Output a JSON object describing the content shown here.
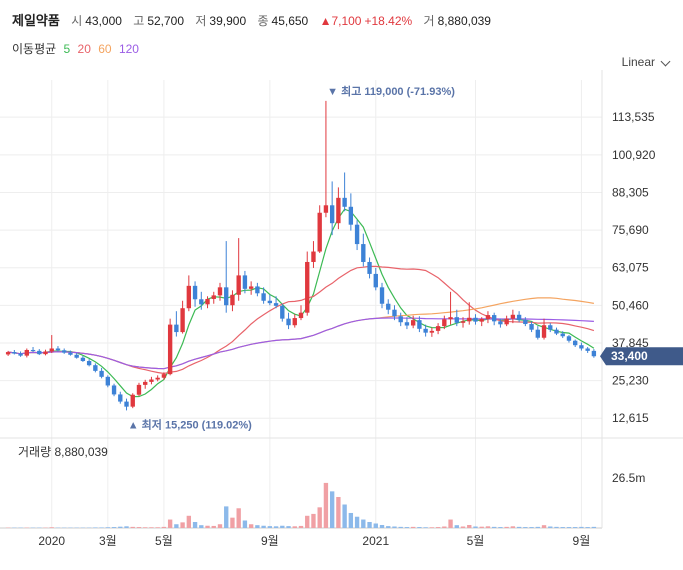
{
  "header": {
    "name": "제일약품",
    "open_label": "시",
    "open": "43,000",
    "high_label": "고",
    "high": "52,700",
    "low_label": "저",
    "low": "39,900",
    "close_label": "종",
    "close": "45,650",
    "change_arrow": "▲",
    "change": "7,100",
    "change_pct": "+18.42%",
    "volume_label": "거",
    "volume": "8,880,039"
  },
  "ma_legend": {
    "label": "이동평균",
    "items": [
      "5",
      "20",
      "60",
      "120"
    ],
    "colors": [
      "#3cba54",
      "#e8636a",
      "#f4a460",
      "#9b5de5"
    ]
  },
  "scale_selector": "Linear",
  "colors": {
    "up": "#e0383e",
    "down": "#3d82d6",
    "up_bar": "#f0a0a4",
    "down_bar": "#8cb9ea",
    "current_badge": "#3f5a8a",
    "marker": "#5a74a8",
    "grid": "#eeeeee"
  },
  "chart_data": {
    "type": "candlestick",
    "x_ticks": [
      {
        "label": "2020",
        "i": 7
      },
      {
        "label": "3월",
        "i": 16
      },
      {
        "label": "5월",
        "i": 25
      },
      {
        "label": "9월",
        "i": 42
      },
      {
        "label": "2021",
        "i": 59
      },
      {
        "label": "5월",
        "i": 75
      },
      {
        "label": "9월",
        "i": 92
      }
    ],
    "y_ticks": [
      "113,535",
      "100,920",
      "88,305",
      "75,690",
      "63,075",
      "50,460",
      "37,845",
      "25,230",
      "12,615"
    ],
    "y_tick_values": [
      113535,
      100920,
      88305,
      75690,
      63075,
      50460,
      37845,
      25230,
      12615
    ],
    "ylim": [
      7000,
      126000
    ],
    "current_price": "33,400",
    "current_value": 33400,
    "high_marker": {
      "label": "최고 119,000 (-71.93%)",
      "value": 119000,
      "i": 52
    },
    "low_marker": {
      "label": "최저 15,250 (119.02%)",
      "value": 15250,
      "i": 20
    },
    "volume_label": "거래량",
    "volume_value": "8,880,039",
    "volume_tick": "26.5m",
    "volume_tick_value": 26500000,
    "candles": [
      [
        34000,
        35200,
        33500,
        34800
      ],
      [
        34800,
        35500,
        34000,
        34300
      ],
      [
        34300,
        35000,
        33200,
        33600
      ],
      [
        33600,
        36000,
        33000,
        35500
      ],
      [
        35500,
        36500,
        34800,
        35200
      ],
      [
        35200,
        35800,
        33800,
        34100
      ],
      [
        34100,
        35600,
        33700,
        35000
      ],
      [
        35000,
        40500,
        34500,
        36000
      ],
      [
        36000,
        36800,
        35000,
        35400
      ],
      [
        35400,
        36000,
        34200,
        34600
      ],
      [
        34600,
        35300,
        33600,
        33900
      ],
      [
        33900,
        34500,
        32600,
        32900
      ],
      [
        32900,
        33500,
        31500,
        31800
      ],
      [
        31800,
        32400,
        30000,
        30400
      ],
      [
        30400,
        31000,
        28000,
        28500
      ],
      [
        28500,
        29500,
        26000,
        26500
      ],
      [
        26500,
        27000,
        23000,
        23600
      ],
      [
        23600,
        24200,
        20000,
        20600
      ],
      [
        20600,
        21500,
        17500,
        18200
      ],
      [
        18200,
        19200,
        15250,
        16500
      ],
      [
        16500,
        21000,
        16000,
        20500
      ],
      [
        20500,
        24500,
        20000,
        23800
      ],
      [
        23800,
        25500,
        22500,
        24800
      ],
      [
        24800,
        26500,
        24000,
        25600
      ],
      [
        25600,
        27000,
        25000,
        26200
      ],
      [
        26200,
        28000,
        25500,
        27400
      ],
      [
        27400,
        46000,
        27000,
        44000
      ],
      [
        44000,
        48500,
        40000,
        41500
      ],
      [
        41500,
        52000,
        41000,
        49500
      ],
      [
        49500,
        60500,
        48500,
        57000
      ],
      [
        57000,
        58500,
        50000,
        52500
      ],
      [
        52500,
        55000,
        49000,
        50800
      ],
      [
        50800,
        53500,
        49500,
        52600
      ],
      [
        52600,
        55000,
        51000,
        53800
      ],
      [
        53800,
        58000,
        52000,
        56500
      ],
      [
        56500,
        72000,
        48000,
        50500
      ],
      [
        50500,
        55500,
        48500,
        54000
      ],
      [
        54000,
        73000,
        52000,
        60500
      ],
      [
        60500,
        62000,
        54500,
        56000
      ],
      [
        56000,
        58500,
        54000,
        56800
      ],
      [
        56800,
        58000,
        53500,
        54500
      ],
      [
        54500,
        56500,
        51000,
        52000
      ],
      [
        52000,
        54000,
        50500,
        51200
      ],
      [
        51200,
        53500,
        49500,
        50300
      ],
      [
        50300,
        51000,
        45000,
        46000
      ],
      [
        46000,
        48000,
        42500,
        43800
      ],
      [
        43800,
        47500,
        43000,
        46200
      ],
      [
        46200,
        50500,
        45500,
        48000
      ],
      [
        48000,
        68500,
        47000,
        65000
      ],
      [
        65000,
        72000,
        63000,
        68500
      ],
      [
        68500,
        84000,
        68000,
        81500
      ],
      [
        81500,
        119000,
        80000,
        84000
      ],
      [
        84000,
        92000,
        74000,
        78000
      ],
      [
        78000,
        90000,
        76000,
        86500
      ],
      [
        86500,
        95000,
        82000,
        83500
      ],
      [
        83500,
        88000,
        75500,
        77500
      ],
      [
        77500,
        79000,
        69000,
        71000
      ],
      [
        71000,
        74500,
        63500,
        65000
      ],
      [
        65000,
        66500,
        59500,
        61000
      ],
      [
        61000,
        63000,
        55500,
        56500
      ],
      [
        56500,
        58000,
        49500,
        51000
      ],
      [
        51000,
        52500,
        47500,
        49000
      ],
      [
        49000,
        50500,
        45500,
        46800
      ],
      [
        46800,
        48000,
        43500,
        44800
      ],
      [
        44800,
        46500,
        42500,
        43700
      ],
      [
        43700,
        47000,
        42800,
        45500
      ],
      [
        45500,
        46800,
        41500,
        42600
      ],
      [
        42600,
        44000,
        40000,
        41300
      ],
      [
        41300,
        43000,
        39900,
        41900
      ],
      [
        41900,
        44500,
        40800,
        43500
      ],
      [
        43500,
        47000,
        42500,
        45800
      ],
      [
        45800,
        55000,
        44000,
        46500
      ],
      [
        46500,
        49000,
        43500,
        44600
      ],
      [
        44600,
        46500,
        43000,
        45100
      ],
      [
        45100,
        51500,
        44000,
        46300
      ],
      [
        46300,
        47500,
        44000,
        45000
      ],
      [
        45000,
        46500,
        43500,
        45900
      ],
      [
        45900,
        48500,
        44500,
        47200
      ],
      [
        47200,
        48000,
        43800,
        45100
      ],
      [
        45100,
        46000,
        43000,
        44100
      ],
      [
        44100,
        47000,
        43500,
        46000
      ],
      [
        46000,
        49000,
        44500,
        47300
      ],
      [
        47300,
        48500,
        44800,
        45600
      ],
      [
        45600,
        46500,
        43500,
        44200
      ],
      [
        44200,
        45000,
        41500,
        42300
      ],
      [
        42300,
        43500,
        39000,
        39600
      ],
      [
        39600,
        46000,
        39000,
        43800
      ],
      [
        43800,
        44500,
        41500,
        42300
      ],
      [
        42300,
        43000,
        40500,
        41000
      ],
      [
        41000,
        41800,
        39500,
        40100
      ],
      [
        40100,
        40500,
        38000,
        38600
      ],
      [
        38600,
        39000,
        36500,
        37100
      ],
      [
        37100,
        38000,
        35300,
        36000
      ],
      [
        36000,
        36500,
        34500,
        35200
      ],
      [
        35200,
        35800,
        32900,
        33400
      ]
    ],
    "volumes": [
      0.2,
      0.2,
      0.2,
      0.2,
      0.2,
      0.2,
      0.2,
      0.4,
      0.2,
      0.2,
      0.2,
      0.2,
      0.2,
      0.2,
      0.3,
      0.3,
      0.4,
      0.5,
      0.7,
      0.9,
      0.6,
      0.5,
      0.4,
      0.4,
      0.4,
      0.6,
      4.5,
      2.0,
      3.0,
      6.5,
      3.2,
      1.5,
      1.2,
      1.1,
      2.0,
      11.5,
      5.5,
      10.5,
      4.0,
      2.0,
      1.5,
      1.2,
      1.0,
      0.9,
      1.2,
      1.0,
      0.9,
      1.1,
      6.5,
      7.5,
      11.0,
      24.0,
      19.5,
      16.5,
      12.5,
      8.0,
      6.0,
      4.5,
      3.2,
      2.4,
      1.6,
      1.0,
      0.8,
      0.6,
      0.5,
      0.6,
      0.5,
      0.4,
      0.4,
      0.5,
      0.8,
      4.5,
      1.5,
      0.8,
      1.6,
      0.8,
      0.7,
      0.9,
      0.6,
      0.5,
      0.6,
      0.9,
      0.6,
      0.5,
      0.5,
      0.6,
      1.5,
      0.8,
      0.6,
      0.5,
      0.5,
      0.5,
      0.6,
      0.5,
      0.6
    ]
  }
}
